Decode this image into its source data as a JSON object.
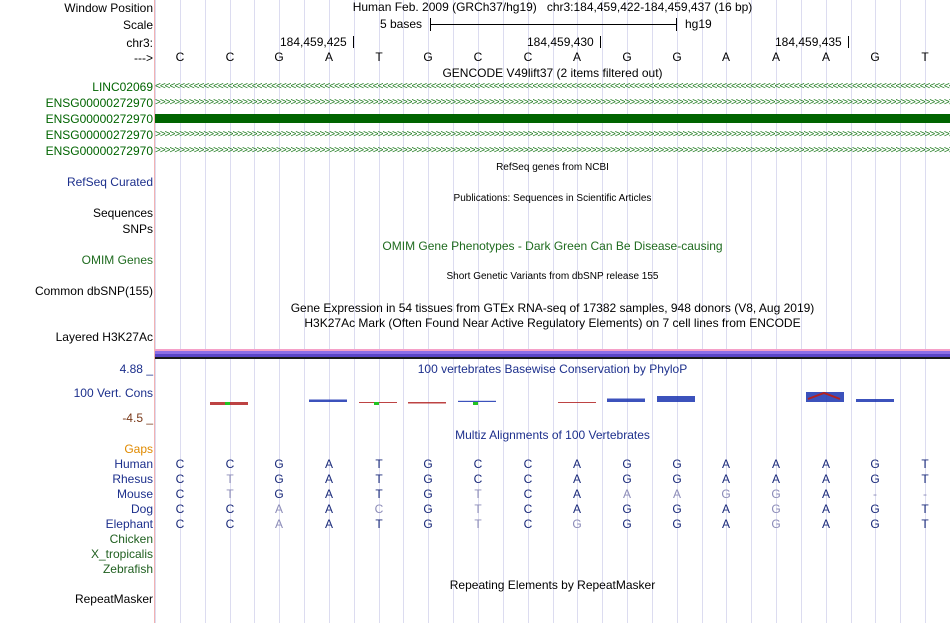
{
  "header": {
    "window_position_label": "Window Position",
    "scale_label": "Scale",
    "chrom_label": "chr3:",
    "arrow_label": "--->",
    "assembly": "Human Feb. 2009 (GRCh37/hg19)",
    "position": "chr3:184,459,422-184,459,437 (16 bp)",
    "scale_text": "5 bases",
    "db": "hg19",
    "coords": [
      "184,459,425",
      "184,459,430",
      "184,459,435"
    ]
  },
  "sequence": [
    "C",
    "C",
    "G",
    "A",
    "T",
    "G",
    "C",
    "C",
    "A",
    "G",
    "G",
    "A",
    "A",
    "A",
    "G",
    "T"
  ],
  "tracks": {
    "gencode_title": "GENCODE V49lift37 (2 items filtered out)",
    "gencode_items": [
      "LINC02069",
      "ENSG00000272970",
      "ENSG00000272970",
      "ENSG00000272970",
      "ENSG00000272970"
    ],
    "gencode_strands": [
      "minus",
      "plus",
      "bar",
      "plus",
      "plus"
    ],
    "refseq_title": "RefSeq genes from NCBI",
    "refseq_label": "RefSeq Curated",
    "pubs_title": "Publications: Sequences in Scientific Articles",
    "sequences_label": "Sequences",
    "snps_label": "SNPs",
    "omim_title": "OMIM Gene Phenotypes - Dark Green Can Be Disease-causing",
    "omim_label": "OMIM Genes",
    "dbsnp_title": "Short Genetic Variants from dbSNP release 155",
    "dbsnp_label": "Common dbSNP(155)",
    "gtex_title": "Gene Expression in 54 tissues from GTEx RNA-seq of 17382 samples, 948 donors (V8, Aug 2019)",
    "h3k27ac_title": "H3K27Ac Mark (Often Found Near Active Regulatory Elements) on 7 cell lines from ENCODE",
    "h3k27ac_label": "Layered H3K27Ac",
    "phylop_title": "100 vertebrates Basewise Conservation by PhyloP",
    "phylop_label": "100 Vert. Cons",
    "phylop_max": "4.88 _",
    "phylop_min": "-4.5 _",
    "multiz_title": "Multiz Alignments of 100 Vertebrates",
    "gaps_label": "Gaps",
    "repeat_title": "Repeating Elements by RepeatMasker",
    "repeat_label": "RepeatMasker"
  },
  "alignment": [
    {
      "species": "Human",
      "bases": [
        "C",
        "C",
        "G",
        "A",
        "T",
        "G",
        "C",
        "C",
        "A",
        "G",
        "G",
        "A",
        "A",
        "A",
        "G",
        "T"
      ],
      "match": [
        1,
        1,
        1,
        1,
        1,
        1,
        1,
        1,
        1,
        1,
        1,
        1,
        1,
        1,
        1,
        1
      ]
    },
    {
      "species": "Rhesus",
      "bases": [
        "C",
        "T",
        "G",
        "A",
        "T",
        "G",
        "C",
        "C",
        "A",
        "G",
        "G",
        "A",
        "A",
        "A",
        "G",
        "T"
      ],
      "match": [
        1,
        0,
        1,
        1,
        1,
        1,
        1,
        1,
        1,
        1,
        1,
        1,
        1,
        1,
        1,
        1
      ]
    },
    {
      "species": "Mouse",
      "bases": [
        "C",
        "T",
        "G",
        "A",
        "T",
        "G",
        "T",
        "C",
        "A",
        "A",
        "A",
        "G",
        "G",
        "A",
        "-",
        "-"
      ],
      "match": [
        1,
        0,
        1,
        1,
        1,
        1,
        0,
        1,
        1,
        0,
        0,
        0,
        0,
        1,
        0,
        0
      ]
    },
    {
      "species": "Dog",
      "bases": [
        "C",
        "C",
        "A",
        "A",
        "C",
        "G",
        "T",
        "C",
        "A",
        "G",
        "G",
        "A",
        "G",
        "A",
        "G",
        "T"
      ],
      "match": [
        1,
        1,
        0,
        1,
        0,
        1,
        0,
        1,
        1,
        1,
        1,
        1,
        0,
        1,
        1,
        1
      ]
    },
    {
      "species": "Elephant",
      "bases": [
        "C",
        "C",
        "A",
        "A",
        "T",
        "G",
        "T",
        "C",
        "G",
        "G",
        "G",
        "A",
        "G",
        "A",
        "G",
        "T"
      ],
      "match": [
        1,
        1,
        0,
        1,
        1,
        1,
        0,
        1,
        0,
        1,
        1,
        1,
        0,
        1,
        1,
        1
      ]
    },
    {
      "species": "Chicken",
      "bases": [],
      "match": []
    },
    {
      "species": "X_tropicalis",
      "bases": [],
      "match": []
    },
    {
      "species": "Zebrafish",
      "bases": [],
      "match": []
    }
  ],
  "phylop_scores": [
    0,
    -0.3,
    0,
    0.25,
    -0.1,
    -0.15,
    0.12,
    0,
    -0.1,
    0.35,
    0.6,
    0,
    0,
    1.0,
    0.3,
    0
  ],
  "colors": {
    "label_blue": "#1c2f8c",
    "gene_green": "#006400",
    "omim_green": "#1f6b1f",
    "gaps_orange": "#e08a00",
    "phylop_pos": "#1a34b0",
    "phylop_neg": "#b22222",
    "mismatch": "#8c8cb8"
  }
}
